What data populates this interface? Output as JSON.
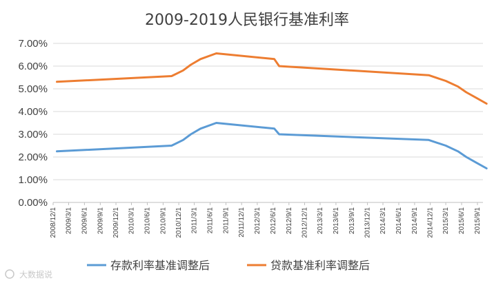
{
  "chart_data": {
    "type": "line",
    "title": "2009-2019人民银行基准利率",
    "xlabel": "",
    "ylabel": "",
    "ylim": [
      0,
      7
    ],
    "yticks": [
      "0.00%",
      "1.00%",
      "2.00%",
      "3.00%",
      "4.00%",
      "5.00%",
      "6.00%",
      "7.00%"
    ],
    "categories": [
      "2008/12/1",
      "2009/3/1",
      "2009/6/1",
      "2009/9/1",
      "2009/12/1",
      "2010/3/1",
      "2010/6/1",
      "2010/9/1",
      "2010/12/1",
      "2011/3/1",
      "2011/6/1",
      "2011/9/1",
      "2011/12/1",
      "2012/3/1",
      "2012/6/1",
      "2012/9/1",
      "2012/12/1",
      "2013/3/1",
      "2013/6/1",
      "2013/9/1",
      "2013/12/1",
      "2014/3/1",
      "2014/6/1",
      "2014/9/1",
      "2014/12/1",
      "2015/3/1",
      "2015/6/1",
      "2015/9/1"
    ],
    "x": [
      "2008/12/23",
      "2010/10/20",
      "2010/12/26",
      "2011/2/9",
      "2011/4/6",
      "2011/7/7",
      "2012/6/8",
      "2012/7/6",
      "2014/11/22",
      "2015/3/1",
      "2015/5/11",
      "2015/6/28",
      "2015/8/26",
      "2015/10/24"
    ],
    "series": [
      {
        "name": "存款利率基准调整后",
        "color": "#5b9bd5",
        "values": [
          2.25,
          2.5,
          2.75,
          3.0,
          3.25,
          3.5,
          3.25,
          3.0,
          2.75,
          2.5,
          2.25,
          2.0,
          1.75,
          1.5
        ]
      },
      {
        "name": "贷款基准利率调整后",
        "color": "#ed7d31",
        "values": [
          5.31,
          5.56,
          5.81,
          6.06,
          6.31,
          6.56,
          6.31,
          6.0,
          5.6,
          5.35,
          5.1,
          4.85,
          4.6,
          4.35
        ]
      }
    ],
    "grid": true,
    "legend": "bottom"
  },
  "watermark": "大数据说"
}
